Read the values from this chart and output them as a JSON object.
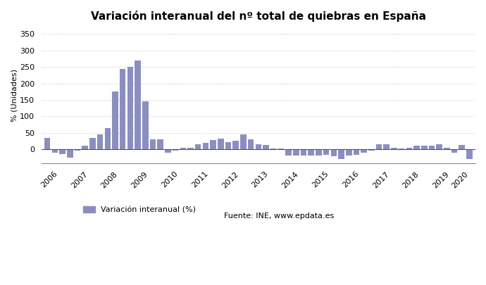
{
  "title": "Variación interanual del nº total de quiebras en España",
  "ylabel": "% (Unidades)",
  "bar_color": "#8b8fc0",
  "legend_label": "Variación interanual (%)",
  "source_text": "Fuente: INE, www.epdata.es",
  "ylim": [
    -43,
    370
  ],
  "yticks": [
    0,
    50,
    100,
    150,
    200,
    250,
    300,
    350
  ],
  "background_color": "#ffffff",
  "grid_color": "#c8c8c8",
  "values": [
    35,
    -10,
    -15,
    -25,
    -5,
    10,
    35,
    45,
    65,
    175,
    245,
    250,
    270,
    145,
    30,
    30,
    -10,
    -5,
    5,
    5,
    15,
    20,
    28,
    32,
    22,
    25,
    45,
    30,
    15,
    12,
    3,
    2,
    -20,
    -20,
    -20,
    -20,
    -20,
    -18,
    -22,
    -30,
    -20,
    -18,
    -10,
    -5,
    15,
    15,
    5,
    2,
    5,
    10,
    10,
    10,
    15,
    5,
    -10,
    12,
    -30
  ],
  "xtick_years": [
    "2006",
    "2007",
    "2008",
    "2009",
    "2010",
    "2011",
    "2012",
    "2013",
    "2014",
    "2015",
    "2016",
    "2017",
    "2018",
    "2019",
    "2020"
  ],
  "year_starts": [
    0,
    4,
    8,
    12,
    16,
    20,
    24,
    28,
    32,
    36,
    40,
    44,
    48,
    52,
    56
  ],
  "year_ends": [
    3,
    7,
    11,
    15,
    19,
    23,
    27,
    31,
    35,
    39,
    43,
    47,
    51,
    55,
    56
  ]
}
